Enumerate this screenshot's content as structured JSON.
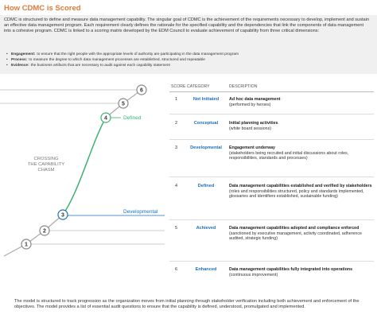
{
  "header": {
    "title": "How CDMC is Scored"
  },
  "intro": "CDMC is structured to define and measure data management capability. The singular goal of CDMC is the achievement of the requirements necessary to develop, implement and sustain an effective data management program. Each requirement clearly defines the rationale for the specified capability and the dependencies that link the components of data management into a cohesive program. CDMC is linked to a scoring matrix developed by the EDM Council to evaluate achievement of capability from three critical dimensions:",
  "bullets": [
    {
      "term": "Engagement:",
      "text": "to ensure that the right people with the appropriate levels of authority are participating in the data management program"
    },
    {
      "term": "Process:",
      "text": "to measure the degree to which data management processes are established, structured and repeatable"
    },
    {
      "term": "Evidence:",
      "text": "the business artifacts that are necessary to audit against each capability statement"
    }
  ],
  "diagram": {
    "levels": [
      "1",
      "2",
      "3",
      "4",
      "5",
      "6"
    ],
    "chasm": "CROSSING THE CAPABILITY CHASM",
    "defined": "Defined",
    "developmental": "Developmental"
  },
  "table": {
    "headers": [
      "SCORE",
      "CATEGORY",
      "DESCRIPTION"
    ],
    "rows": [
      {
        "score": "1",
        "category": "Not Initiated",
        "title": "Ad hoc data management",
        "detail": "(performed by heroes)"
      },
      {
        "score": "2",
        "category": "Conceptual",
        "title": "Initial planning activities",
        "detail": "(white board sessions)"
      },
      {
        "score": "3",
        "category": "Developmental",
        "title": "Engagement underway",
        "detail": "(stakeholders being recruited and initial discussions about roles, responsibilities, standards and processes)"
      },
      {
        "score": "4",
        "category": "Defined",
        "title": "Data management capabilities established and verified by stakeholders",
        "detail": "(roles and responsibilities structured, policy and standards implemented, glossaries and identifiers established, sustainable funding)"
      },
      {
        "score": "5",
        "category": "Achieved",
        "title": "Data management capabilities adopted and compliance enforced",
        "detail": "(sanctioned by executive management, activity coordinated, adherence audited, strategic funding)"
      },
      {
        "score": "6",
        "category": "Enhanced",
        "title": "Data management capabilities fully integrated into operations",
        "detail": "(continuous improvement)"
      }
    ]
  },
  "footer": "The model is structured to track progression as the organization moves from initial planning through stakeholder verification including both achievement and enforcement of the objectives. The model provides a list of essential audit questions to ensure that the capability is defined, understood, promulgated and implemented."
}
